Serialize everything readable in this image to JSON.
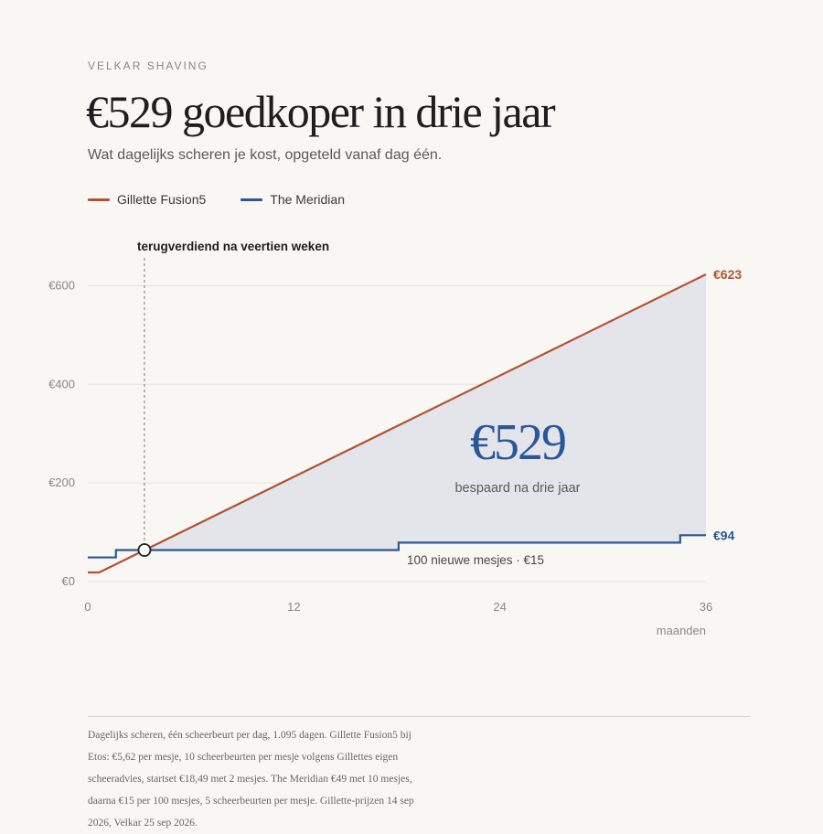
{
  "header": {
    "kicker": "VELKAR SHAVING",
    "title": "€529 goedkoper in drie jaar",
    "subtitle": "Wat dagelijks scheren je kost, opgeteld vanaf dag één."
  },
  "legend": [
    {
      "label": "Gillette Fusion5",
      "color": "#b1532f"
    },
    {
      "label": "The Meridian",
      "color": "#2b5797"
    }
  ],
  "colors": {
    "gillette": "#b1532f",
    "meridian": "#2b5797",
    "savings_fill": "#e4e5eb",
    "grid": "#e6e3de",
    "axis_text": "#8a8782"
  },
  "chart_data": {
    "type": "line",
    "xlabel": "maanden",
    "ylabel": "",
    "xlim": [
      0,
      36
    ],
    "ylim": [
      0,
      623
    ],
    "x_ticks": [
      0,
      12,
      24,
      36
    ],
    "x_tick_labels": [
      "0",
      "12",
      "24",
      "36"
    ],
    "y_ticks": [
      0,
      200,
      400,
      600
    ],
    "y_tick_labels": [
      "€0",
      "€200",
      "€400",
      "€600"
    ],
    "grid": true,
    "legend_position": "top-left",
    "series": [
      {
        "name": "Gillette Fusion5",
        "color": "#b1532f",
        "points": [
          [
            0,
            18.49
          ],
          [
            0.66,
            18.49
          ],
          [
            36,
            623
          ]
        ],
        "end_label": "€623"
      },
      {
        "name": "The Meridian",
        "color": "#2b5797",
        "step": true,
        "points": [
          [
            0,
            49
          ],
          [
            1.64,
            49
          ],
          [
            1.64,
            64
          ],
          [
            18.1,
            64
          ],
          [
            18.1,
            79
          ],
          [
            34.5,
            79
          ],
          [
            34.5,
            94
          ],
          [
            36,
            94
          ]
        ],
        "end_label": "€94"
      }
    ],
    "annotations": {
      "breakeven_x": 3.3,
      "breakeven_y": 64,
      "breakeven_label": "terugverdiend na veertien weken",
      "savings_value": "€529",
      "savings_caption": "bespaard na drie jaar",
      "step_note": "100 nieuwe mesjes · €15"
    }
  },
  "footnote": "Dagelijks scheren, één scheerbeurt per dag, 1.095 dagen. Gillette Fusion5 bij Etos: €5,62 per mesje, 10 scheerbeurten per mesje volgens Gillettes eigen scheeradvies, startset €18,49 met 2 mesjes. The Meridian €49 met 10 mesjes, daarna €15 per 100 mesjes, 5 scheerbeurten per mesje. Gillette-prijzen 14 sep 2026, Velkar 25 sep 2026."
}
